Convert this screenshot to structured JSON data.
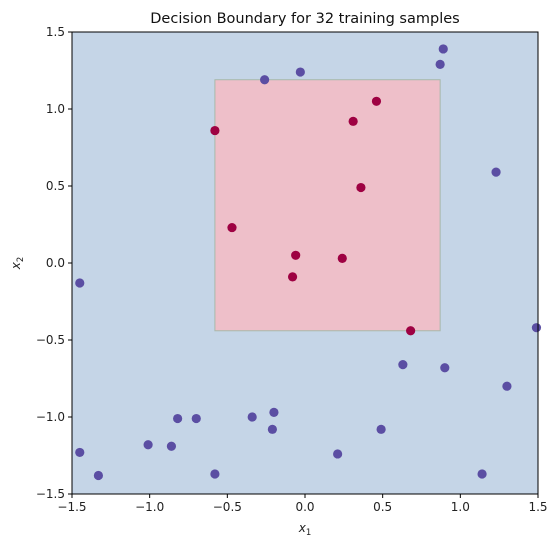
{
  "chart_data": {
    "type": "scatter",
    "title": "Decision Boundary for 32 training samples",
    "xlabel_main": "x",
    "xlabel_sub": "1",
    "ylabel_main": "x",
    "ylabel_sub": "2",
    "xlim": [
      -1.5,
      1.5
    ],
    "ylim": [
      -1.5,
      1.5
    ],
    "xticks": [
      "−1.5",
      "−1.0",
      "−0.5",
      "0.0",
      "0.5",
      "1.0",
      "1.5"
    ],
    "xtick_values": [
      -1.5,
      -1.0,
      -0.5,
      0.0,
      0.5,
      1.0,
      1.5
    ],
    "yticks": [
      "−1.5",
      "−1.0",
      "−0.5",
      "0.0",
      "0.5",
      "1.0",
      "1.5"
    ],
    "ytick_values": [
      -1.5,
      -1.0,
      -0.5,
      0.0,
      0.5,
      1.0,
      1.5
    ],
    "grid": false,
    "background_color": "#c5d5e7",
    "decision_region": {
      "x": [
        -0.58,
        0.87
      ],
      "y": [
        -0.44,
        1.19
      ],
      "color": "#eebfc9",
      "edge_color": "#a8b8aa"
    },
    "series": [
      {
        "color": "#5b4ea3",
        "points": [
          [
            0.89,
            1.39
          ],
          [
            0.87,
            1.29
          ],
          [
            -0.26,
            1.19
          ],
          [
            -0.03,
            1.24
          ],
          [
            1.23,
            0.59
          ],
          [
            -1.45,
            -0.13
          ],
          [
            1.49,
            -0.42
          ],
          [
            0.63,
            -0.66
          ],
          [
            0.9,
            -0.68
          ],
          [
            1.3,
            -0.8
          ],
          [
            -0.34,
            -1.0
          ],
          [
            -0.2,
            -0.97
          ],
          [
            -0.82,
            -1.01
          ],
          [
            -0.7,
            -1.01
          ],
          [
            -1.01,
            -1.18
          ],
          [
            -0.86,
            -1.19
          ],
          [
            -0.21,
            -1.08
          ],
          [
            0.49,
            -1.08
          ],
          [
            -1.45,
            -1.23
          ],
          [
            0.21,
            -1.24
          ],
          [
            -1.33,
            -1.38
          ],
          [
            -0.58,
            -1.37
          ],
          [
            1.14,
            -1.37
          ]
        ]
      },
      {
        "color": "#9e0142",
        "points": [
          [
            0.46,
            1.05
          ],
          [
            0.31,
            0.92
          ],
          [
            -0.58,
            0.86
          ],
          [
            0.36,
            0.49
          ],
          [
            -0.47,
            0.23
          ],
          [
            -0.06,
            0.05
          ],
          [
            0.24,
            0.03
          ],
          [
            -0.08,
            -0.09
          ],
          [
            0.68,
            -0.44
          ]
        ]
      }
    ]
  }
}
